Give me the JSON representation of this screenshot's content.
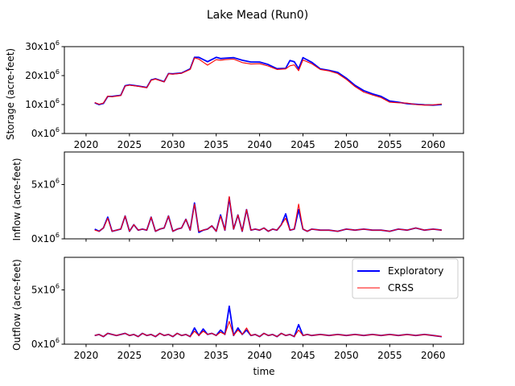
{
  "title": "Lake Mead (Run0)",
  "xlabel": "time",
  "x_ticks": [
    "2020",
    "2025",
    "2030",
    "2035",
    "2040",
    "2045",
    "2050",
    "2055",
    "2060"
  ],
  "legend": [
    {
      "label": "Exploratory",
      "color": "#0000ff"
    },
    {
      "label": "CRSS",
      "color": "#ff0000"
    }
  ],
  "chart_data": [
    {
      "type": "line",
      "title": "Lake Mead (Run0)",
      "xlabel": "",
      "ylabel": "Storage (acre-feet)",
      "xlim": [
        2017.5,
        2063.5
      ],
      "ylim": [
        0,
        30000000
      ],
      "ytick_labels": [
        {
          "value": 0,
          "base": "0x10",
          "exp": "6"
        },
        {
          "value": 10000000,
          "base": "10x10",
          "exp": "6"
        },
        {
          "value": 20000000,
          "base": "20x10",
          "exp": "6"
        },
        {
          "value": 30000000,
          "base": "30x10",
          "exp": "6"
        }
      ],
      "x": [
        2021,
        2021.5,
        2022,
        2022.5,
        2023,
        2024,
        2024.5,
        2025,
        2026,
        2027,
        2027.5,
        2028,
        2029,
        2029.5,
        2030,
        2031,
        2032,
        2032.5,
        2033,
        2034,
        2035,
        2035.5,
        2036,
        2037,
        2038,
        2039,
        2040,
        2041,
        2042,
        2043,
        2043.5,
        2044,
        2044.5,
        2045,
        2046,
        2047,
        2048,
        2049,
        2050,
        2051,
        2052,
        2053,
        2054,
        2055,
        2056,
        2057,
        2058,
        2059,
        2060,
        2061
      ],
      "series": [
        {
          "name": "Exploratory",
          "color": "#0000ff",
          "values": [
            10600000,
            10000000,
            10400000,
            12800000,
            12800000,
            13200000,
            16500000,
            16800000,
            16400000,
            15900000,
            18500000,
            18900000,
            17900000,
            20700000,
            20600000,
            20900000,
            22300000,
            26300000,
            26300000,
            24800000,
            26300000,
            25900000,
            26000000,
            26200000,
            25300000,
            24700000,
            24700000,
            23800000,
            22400000,
            22500000,
            25200000,
            24800000,
            22400000,
            26200000,
            24600000,
            22300000,
            21800000,
            21100000,
            19100000,
            16600000,
            14800000,
            13700000,
            12800000,
            11200000,
            10800000,
            10300000,
            10100000,
            9900000,
            9800000,
            10000000
          ]
        },
        {
          "name": "CRSS",
          "color": "#ff0000",
          "values": [
            10700000,
            10100000,
            10500000,
            12900000,
            12700000,
            13100000,
            16400000,
            16700000,
            16300000,
            15800000,
            18400000,
            18800000,
            17800000,
            20600000,
            20500000,
            20800000,
            22100000,
            26100000,
            25700000,
            23600000,
            25500000,
            25300000,
            25500000,
            25700000,
            24500000,
            24000000,
            24100000,
            23300000,
            22100000,
            22300000,
            23400000,
            23700000,
            21700000,
            25400000,
            24100000,
            22100000,
            21600000,
            20700000,
            18700000,
            16200000,
            14300000,
            13300000,
            12400000,
            10800000,
            10600000,
            10500000,
            10000000,
            9800000,
            9900000,
            10200000
          ]
        }
      ]
    },
    {
      "type": "line",
      "xlabel": "",
      "ylabel": "Inflow (acre-feet)",
      "xlim": [
        2017.5,
        2063.5
      ],
      "ylim": [
        0,
        8000000
      ],
      "ytick_labels": [
        {
          "value": 0,
          "base": "0x10",
          "exp": "6"
        },
        {
          "value": 5000000,
          "base": "5x10",
          "exp": "6"
        }
      ],
      "x": [
        2021,
        2021.5,
        2022,
        2022.5,
        2023,
        2023.5,
        2024,
        2024.5,
        2025,
        2025.5,
        2026,
        2026.5,
        2027,
        2027.5,
        2028,
        2028.5,
        2029,
        2029.5,
        2030,
        2030.5,
        2031,
        2031.5,
        2032,
        2032.5,
        2033,
        2033.5,
        2034,
        2034.5,
        2035,
        2035.5,
        2036,
        2036.5,
        2037,
        2037.5,
        2038,
        2038.5,
        2039,
        2039.5,
        2040,
        2040.5,
        2041,
        2041.5,
        2042,
        2042.5,
        2043,
        2043.5,
        2044,
        2044.5,
        2045,
        2045.5,
        2046,
        2047,
        2048,
        2049,
        2050,
        2051,
        2052,
        2053,
        2054,
        2055,
        2056,
        2057,
        2058,
        2059,
        2060,
        2061
      ],
      "series": [
        {
          "name": "Exploratory",
          "color": "#0000ff",
          "values": [
            900000,
            700000,
            1000000,
            2000000,
            700000,
            800000,
            900000,
            2100000,
            700000,
            1300000,
            800000,
            900000,
            800000,
            2000000,
            700000,
            900000,
            1000000,
            2100000,
            700000,
            900000,
            1000000,
            1800000,
            800000,
            3300000,
            600000,
            800000,
            900000,
            1200000,
            700000,
            2200000,
            800000,
            3800000,
            900000,
            2200000,
            700000,
            2700000,
            800000,
            900000,
            800000,
            1000000,
            700000,
            900000,
            800000,
            1300000,
            2300000,
            800000,
            900000,
            2700000,
            900000,
            700000,
            900000,
            800000,
            800000,
            700000,
            900000,
            800000,
            900000,
            800000,
            800000,
            700000,
            900000,
            800000,
            1000000,
            800000,
            900000,
            800000
          ]
        },
        {
          "name": "CRSS",
          "color": "#ff0000",
          "values": [
            800000,
            700000,
            1000000,
            1900000,
            700000,
            800000,
            900000,
            2100000,
            700000,
            1300000,
            800000,
            900000,
            800000,
            2000000,
            700000,
            900000,
            1000000,
            2100000,
            700000,
            900000,
            1000000,
            1800000,
            800000,
            3200000,
            700000,
            800000,
            900000,
            1200000,
            700000,
            2100000,
            800000,
            3900000,
            900000,
            2200000,
            700000,
            2700000,
            800000,
            900000,
            800000,
            1000000,
            700000,
            900000,
            800000,
            1300000,
            1900000,
            800000,
            900000,
            3200000,
            900000,
            700000,
            900000,
            800000,
            800000,
            700000,
            900000,
            800000,
            900000,
            800000,
            800000,
            700000,
            900000,
            800000,
            1000000,
            800000,
            900000,
            800000
          ]
        }
      ]
    },
    {
      "type": "line",
      "xlabel": "time",
      "ylabel": "Outflow (acre-feet)",
      "xlim": [
        2017.5,
        2063.5
      ],
      "ylim": [
        0,
        8000000
      ],
      "ytick_labels": [
        {
          "value": 0,
          "base": "0x10",
          "exp": "6"
        },
        {
          "value": 5000000,
          "base": "5x10",
          "exp": "6"
        }
      ],
      "legend_loc": "upper right",
      "x": [
        2021,
        2021.5,
        2022,
        2022.5,
        2023,
        2023.5,
        2024,
        2024.5,
        2025,
        2025.5,
        2026,
        2026.5,
        2027,
        2027.5,
        2028,
        2028.5,
        2029,
        2029.5,
        2030,
        2030.5,
        2031,
        2031.5,
        2032,
        2032.5,
        2033,
        2033.5,
        2034,
        2034.5,
        2035,
        2035.5,
        2036,
        2036.5,
        2037,
        2037.5,
        2038,
        2038.5,
        2039,
        2039.5,
        2040,
        2040.5,
        2041,
        2041.5,
        2042,
        2042.5,
        2043,
        2043.5,
        2044,
        2044.5,
        2045,
        2045.5,
        2046,
        2047,
        2048,
        2049,
        2050,
        2051,
        2052,
        2053,
        2054,
        2055,
        2056,
        2057,
        2058,
        2059,
        2060,
        2061
      ],
      "series": [
        {
          "name": "Exploratory",
          "color": "#0000ff",
          "values": [
            800000,
            900000,
            700000,
            1000000,
            900000,
            800000,
            900000,
            1000000,
            800000,
            900000,
            700000,
            1000000,
            800000,
            900000,
            700000,
            1000000,
            800000,
            900000,
            700000,
            1000000,
            800000,
            900000,
            700000,
            1500000,
            800000,
            1400000,
            900000,
            1000000,
            800000,
            1300000,
            900000,
            3500000,
            800000,
            1500000,
            900000,
            1300000,
            800000,
            900000,
            700000,
            1000000,
            800000,
            900000,
            700000,
            1000000,
            800000,
            900000,
            700000,
            1800000,
            800000,
            900000,
            800000,
            900000,
            800000,
            900000,
            800000,
            900000,
            800000,
            900000,
            800000,
            900000,
            800000,
            900000,
            800000,
            900000,
            800000,
            700000
          ]
        },
        {
          "name": "CRSS",
          "color": "#ff0000",
          "values": [
            800000,
            900000,
            700000,
            1000000,
            900000,
            800000,
            900000,
            1000000,
            800000,
            900000,
            700000,
            1000000,
            800000,
            900000,
            700000,
            1000000,
            800000,
            900000,
            700000,
            1000000,
            800000,
            900000,
            700000,
            1200000,
            800000,
            1200000,
            900000,
            1000000,
            800000,
            1100000,
            900000,
            2100000,
            800000,
            1300000,
            900000,
            1500000,
            800000,
            900000,
            700000,
            1000000,
            800000,
            900000,
            700000,
            1000000,
            800000,
            900000,
            700000,
            1300000,
            800000,
            900000,
            800000,
            900000,
            800000,
            900000,
            800000,
            900000,
            800000,
            900000,
            800000,
            900000,
            800000,
            900000,
            800000,
            900000,
            800000,
            700000
          ]
        }
      ]
    }
  ]
}
